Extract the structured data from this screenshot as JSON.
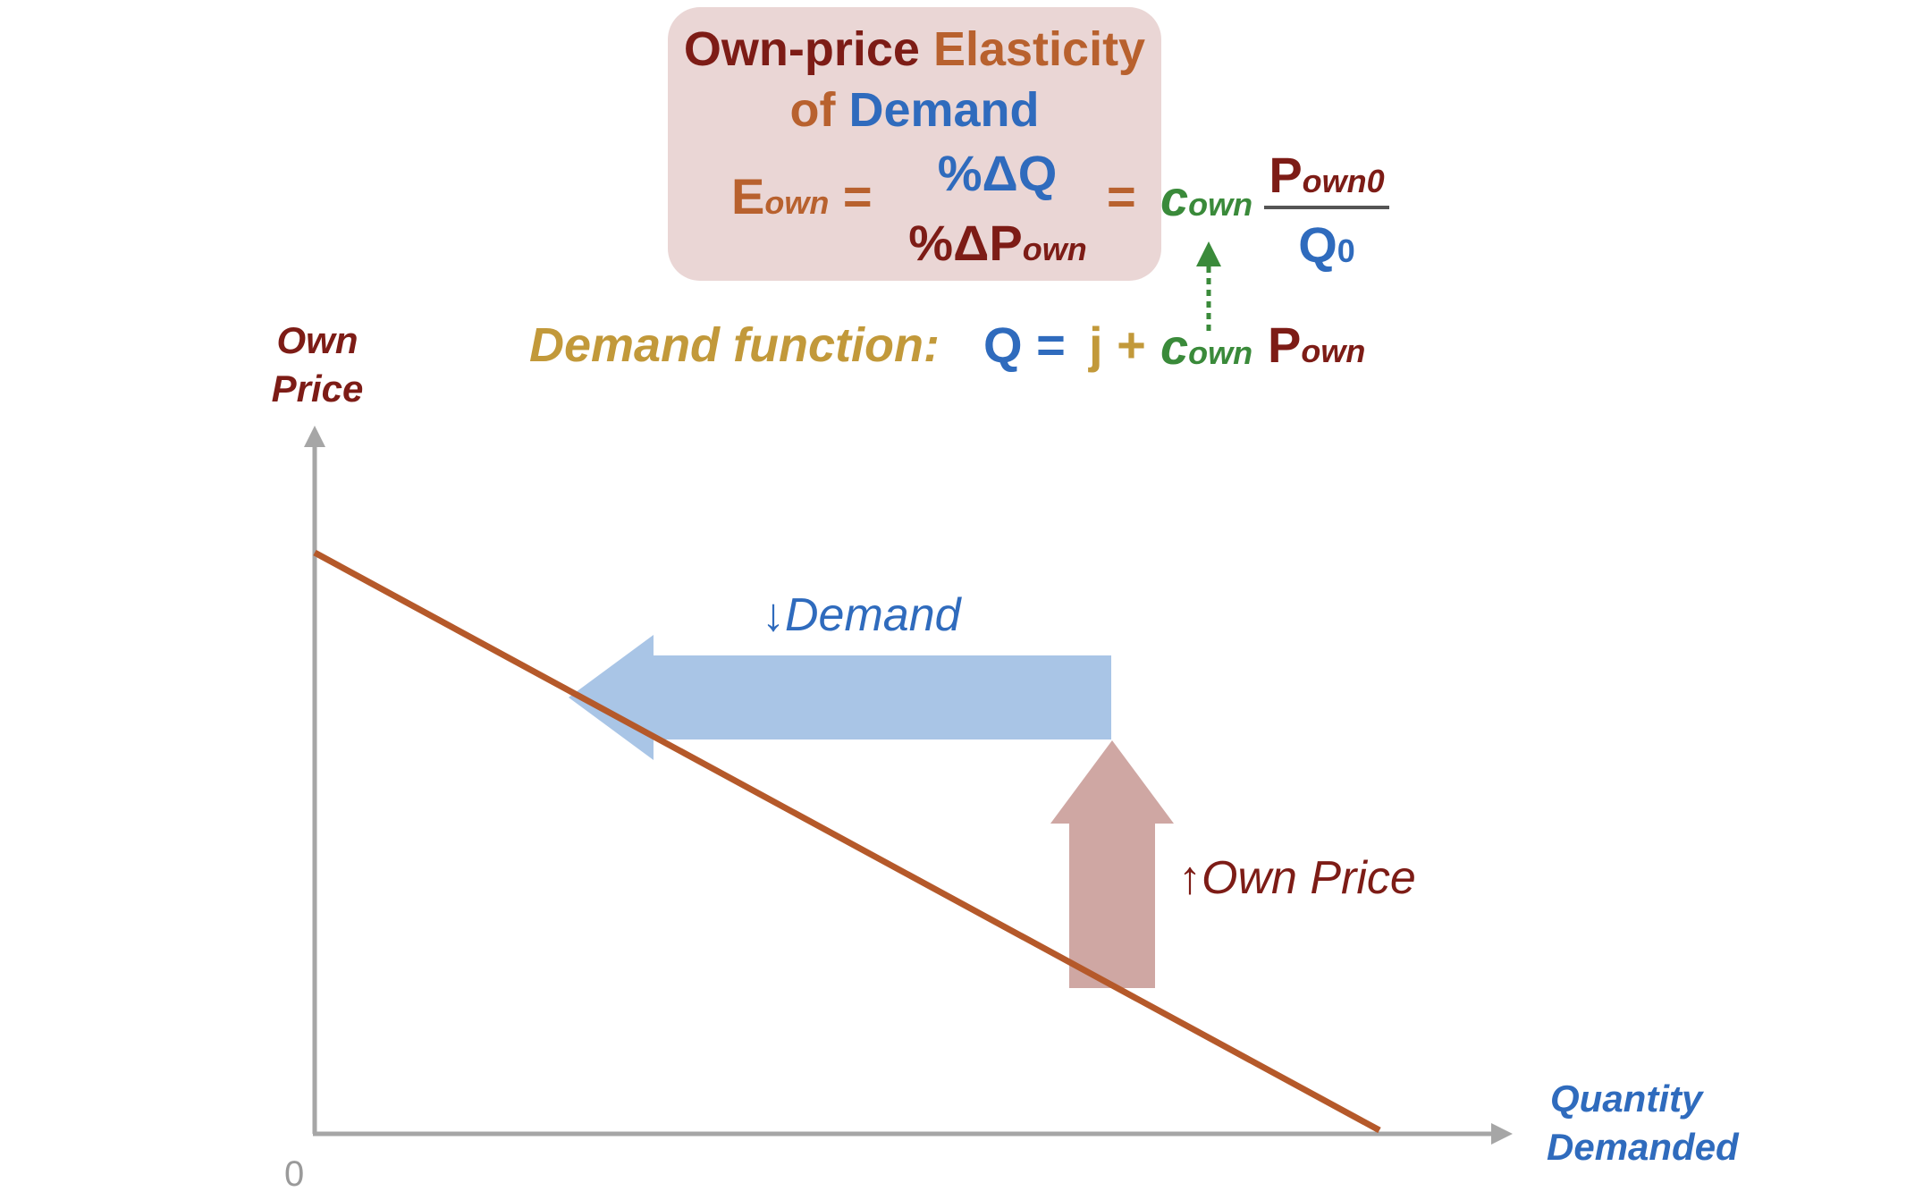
{
  "header": {
    "title_part1": "Own-price",
    "title_part2": "Elasticity",
    "title_part3": "of",
    "title_part4": "Demand"
  },
  "formula": {
    "lhs_E": "E",
    "lhs_sub": "own",
    "equals": "=",
    "numerator": "%ΔQ",
    "denominator_main": "%ΔP",
    "denominator_sub": "own",
    "rhs_c": "c",
    "rhs_c_sub": "own",
    "rhs_num": "P",
    "rhs_num_sub": "own0",
    "rhs_den": "Q",
    "rhs_den_sub": "0"
  },
  "demand_function": {
    "label": "Demand function:",
    "q": "Q =",
    "j": "j +",
    "c": "c",
    "c_sub": "own",
    "p": "P",
    "p_sub": "own"
  },
  "axes": {
    "y_label_line1": "Own",
    "y_label_line2": "Price",
    "x_label_line1": "Quantity",
    "x_label_line2": "Demanded",
    "origin": "0"
  },
  "annotations": {
    "demand_arrow_symbol": "↓",
    "demand_arrow_label": "Demand",
    "price_arrow_symbol": "↑",
    "price_arrow_label": "Own Price"
  },
  "colors": {
    "dark_red": "#7d1c16",
    "orange": "#b8612e",
    "blue": "#2f6bbd",
    "green": "#3a8a3a",
    "gold": "#c2993a",
    "demand_line": "#b5592a",
    "demand_arrow_fill": "#a9c5e6",
    "price_arrow_fill": "#cfa7a3",
    "axis": "#a6a6a6",
    "box_fill": "#ead6d5"
  }
}
